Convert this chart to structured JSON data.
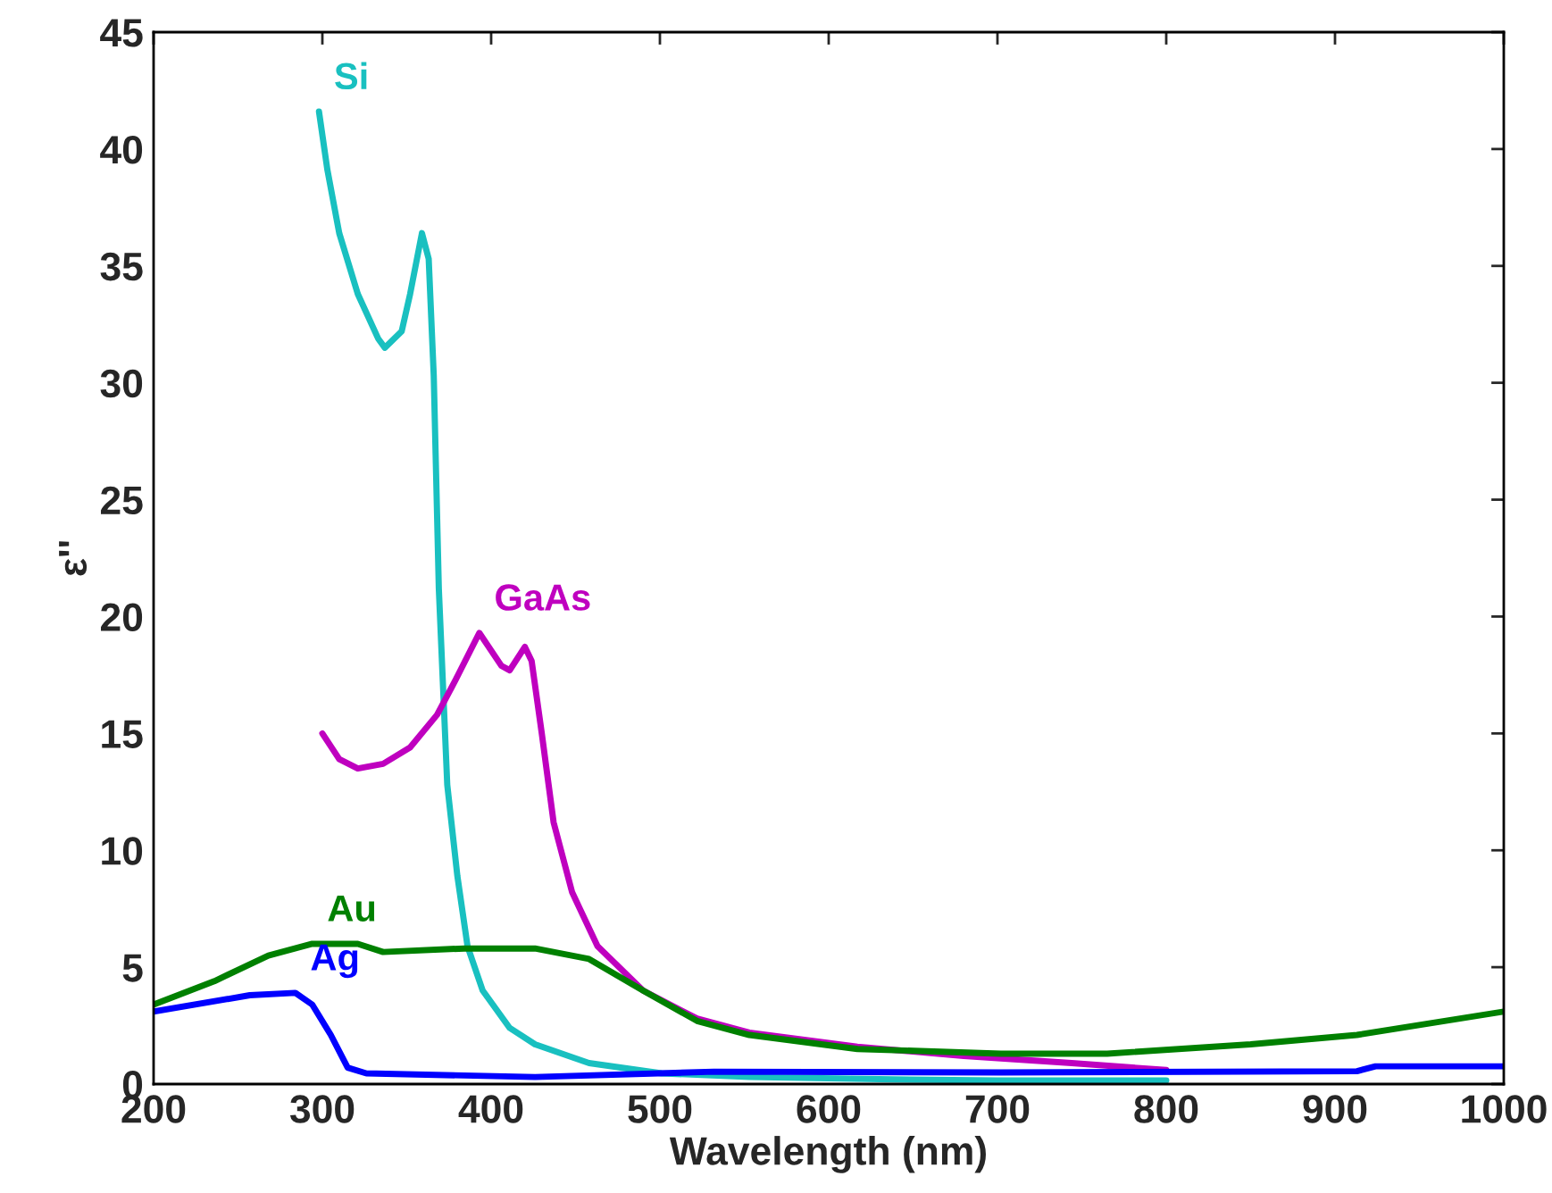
{
  "chart_data": {
    "type": "line",
    "xlabel": "Wavelength (nm)",
    "ylabel": "ε''",
    "xlim": [
      200,
      1000
    ],
    "xticks": [
      200,
      300,
      400,
      500,
      600,
      700,
      800,
      900,
      1000
    ],
    "ylim": [
      0,
      45
    ],
    "yticks": [
      0,
      5,
      10,
      15,
      20,
      25,
      30,
      35,
      40,
      45
    ],
    "grid": false,
    "line_style": "solid",
    "marker": "none",
    "series": [
      {
        "name": "Si",
        "color": "#19c0c0",
        "x": [
          298,
          303,
          310,
          321,
          333,
          337,
          347,
          352,
          359,
          363,
          366,
          369,
          374,
          380,
          386,
          395,
          411,
          426,
          458,
          501,
          553,
          638,
          700,
          800
        ],
        "values": [
          41.6,
          39.1,
          36.4,
          33.8,
          31.9,
          31.5,
          32.2,
          33.8,
          36.4,
          35.3,
          30.3,
          21.2,
          12.8,
          8.9,
          5.9,
          4.0,
          2.4,
          1.7,
          0.9,
          0.46,
          0.3,
          0.2,
          0.15,
          0.15
        ]
      },
      {
        "name": "GaAs",
        "color": "#bf00bf",
        "x": [
          300,
          310,
          321,
          336,
          352,
          368,
          379,
          393,
          406,
          411,
          420,
          424,
          430,
          437,
          448,
          463,
          490,
          522,
          553,
          617,
          680,
          744,
          800
        ],
        "values": [
          15.0,
          13.9,
          13.5,
          13.7,
          14.4,
          15.8,
          17.3,
          19.3,
          17.9,
          17.7,
          18.7,
          18.1,
          15.0,
          11.2,
          8.2,
          5.9,
          4.0,
          2.8,
          2.2,
          1.6,
          1.2,
          0.9,
          0.6
        ]
      },
      {
        "name": "Au",
        "color": "#008000",
        "x": [
          200,
          236,
          268,
          294,
          321,
          336,
          384,
          426,
          458,
          490,
          522,
          553,
          617,
          702,
          765,
          850,
          913,
          1000
        ],
        "values": [
          3.4,
          4.4,
          5.5,
          6.0,
          6.0,
          5.65,
          5.8,
          5.8,
          5.35,
          4.0,
          2.7,
          2.1,
          1.5,
          1.3,
          1.3,
          1.7,
          2.1,
          3.1
        ]
      },
      {
        "name": "Ag",
        "color": "#0000ff",
        "x": [
          200,
          257,
          284,
          294,
          305,
          315,
          326,
          426,
          532,
          702,
          913,
          924,
          1000
        ],
        "values": [
          3.1,
          3.8,
          3.9,
          3.4,
          2.1,
          0.7,
          0.46,
          0.3,
          0.53,
          0.5,
          0.55,
          0.76,
          0.76
        ]
      }
    ]
  }
}
